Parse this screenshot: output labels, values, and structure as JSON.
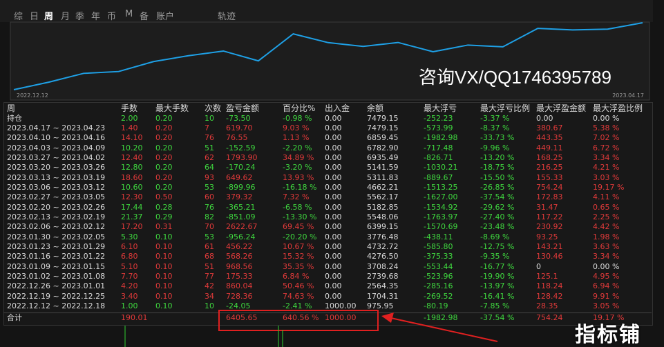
{
  "tabs": [
    "综",
    "日",
    "周",
    "月",
    "季",
    "年",
    "币",
    "M",
    "备",
    "账户",
    "轨迹"
  ],
  "chart": {
    "start_label": "2022.12.12",
    "end_label": "2023.04.17"
  },
  "contact": "咨询VX/QQ1746395789",
  "table": {
    "columns": [
      "周",
      "手数",
      "最大手数",
      "次数",
      "盈亏金额",
      "百分比%",
      "出入金",
      "余额",
      "最大浮亏",
      "最大浮亏比例",
      "最大浮盈金额",
      "最大浮盈比例"
    ],
    "rows": [
      [
        "持仓",
        "2.00",
        "0.20",
        "10",
        "-73.50",
        "-0.98 %",
        "0.00",
        "7479.15",
        "-252.23",
        "-3.37 %",
        "0.00",
        "0.00 %"
      ],
      [
        "2023.04.17 ~ 2023.04.23",
        "1.40",
        "0.20",
        "7",
        "619.70",
        "9.03 %",
        "0.00",
        "7479.15",
        "-573.99",
        "-8.37 %",
        "380.67",
        "5.38 %"
      ],
      [
        "2023.04.10 ~ 2023.04.16",
        "14.10",
        "0.20",
        "76",
        "76.55",
        "1.13 %",
        "0.00",
        "6859.45",
        "-1982.98",
        "-33.73 %",
        "443.35",
        "7.02 %"
      ],
      [
        "2023.04.03 ~ 2023.04.09",
        "10.20",
        "0.20",
        "51",
        "-152.59",
        "-2.20 %",
        "0.00",
        "6782.90",
        "-717.48",
        "-9.96 %",
        "449.11",
        "6.72 %"
      ],
      [
        "2023.03.27 ~ 2023.04.02",
        "12.40",
        "0.20",
        "62",
        "1793.90",
        "34.89 %",
        "0.00",
        "6935.49",
        "-826.71",
        "-13.20 %",
        "168.25",
        "3.34 %"
      ],
      [
        "2023.03.20 ~ 2023.03.26",
        "12.80",
        "0.20",
        "64",
        "-170.24",
        "-3.20 %",
        "0.00",
        "5141.59",
        "-1030.21",
        "-18.75 %",
        "216.25",
        "4.21 %"
      ],
      [
        "2023.03.13 ~ 2023.03.19",
        "18.60",
        "0.20",
        "93",
        "649.62",
        "13.93 %",
        "0.00",
        "5311.83",
        "-889.67",
        "-15.50 %",
        "155.33",
        "3.03 %"
      ],
      [
        "2023.03.06 ~ 2023.03.12",
        "10.60",
        "0.20",
        "53",
        "-899.96",
        "-16.18 %",
        "0.00",
        "4662.21",
        "-1513.25",
        "-26.85 %",
        "754.24",
        "19.17 %"
      ],
      [
        "2023.02.27 ~ 2023.03.05",
        "12.30",
        "0.50",
        "60",
        "379.32",
        "7.32 %",
        "0.00",
        "5562.17",
        "-1627.00",
        "-37.54 %",
        "172.83",
        "4.11 %"
      ],
      [
        "2023.02.20 ~ 2023.02.26",
        "17.44",
        "0.28",
        "76",
        "-365.21",
        "-6.58 %",
        "0.00",
        "5182.85",
        "-1534.92",
        "-29.62 %",
        "31.47",
        "0.65 %"
      ],
      [
        "2023.02.13 ~ 2023.02.19",
        "21.37",
        "0.29",
        "82",
        "-851.09",
        "-13.30 %",
        "0.00",
        "5548.06",
        "-1763.97",
        "-27.40 %",
        "117.22",
        "2.25 %"
      ],
      [
        "2023.02.06 ~ 2023.02.12",
        "17.20",
        "0.31",
        "70",
        "2622.67",
        "69.45 %",
        "0.00",
        "6399.15",
        "-1570.69",
        "-23.48 %",
        "230.92",
        "4.42 %"
      ],
      [
        "2023.01.30 ~ 2023.02.05",
        "5.30",
        "0.10",
        "53",
        "-956.24",
        "-20.20 %",
        "0.00",
        "3776.48",
        "-438.11",
        "-8.69 %",
        "93.25",
        "1.98 %"
      ],
      [
        "2023.01.23 ~ 2023.01.29",
        "6.10",
        "0.10",
        "61",
        "456.22",
        "10.67 %",
        "0.00",
        "4732.72",
        "-585.80",
        "-12.75 %",
        "143.21",
        "3.63 %"
      ],
      [
        "2023.01.16 ~ 2023.01.22",
        "6.80",
        "0.10",
        "68",
        "568.26",
        "15.32 %",
        "0.00",
        "4276.50",
        "-375.33",
        "-9.35 %",
        "130.46",
        "3.34 %"
      ],
      [
        "2023.01.09 ~ 2023.01.15",
        "5.10",
        "0.10",
        "51",
        "968.56",
        "35.35 %",
        "0.00",
        "3708.24",
        "-553.44",
        "-16.77 %",
        "0",
        "0.00 %"
      ],
      [
        "2023.01.02 ~ 2023.01.08",
        "7.70",
        "0.10",
        "77",
        "175.33",
        "6.84 %",
        "0.00",
        "2739.68",
        "-523.96",
        "-19.90 %",
        "125.1",
        "4.95 %"
      ],
      [
        "2022.12.26 ~ 2023.01.01",
        "4.20",
        "0.10",
        "42",
        "860.04",
        "50.46 %",
        "0.00",
        "2564.35",
        "-285.16",
        "-13.97 %",
        "118.24",
        "6.94 %"
      ],
      [
        "2022.12.19 ~ 2022.12.25",
        "3.40",
        "0.10",
        "34",
        "728.36",
        "74.63 %",
        "0.00",
        "1704.31",
        "-269.52",
        "-16.41 %",
        "128.42",
        "9.91 %"
      ],
      [
        "2022.12.12 ~ 2022.12.18",
        "1.00",
        "0.10",
        "10",
        "-24.05",
        "-2.41 %",
        "1000.00",
        "975.95",
        "-80.19",
        "-7.85 %",
        "28.35",
        "3.05 %"
      ]
    ],
    "total": [
      "合计",
      "190.01",
      null,
      null,
      "6405.65",
      "640.56 %",
      "1000.00",
      null,
      "-1982.98",
      "-37.54 %",
      "754.24",
      "19.17 %"
    ]
  },
  "brand": "指标铺"
}
